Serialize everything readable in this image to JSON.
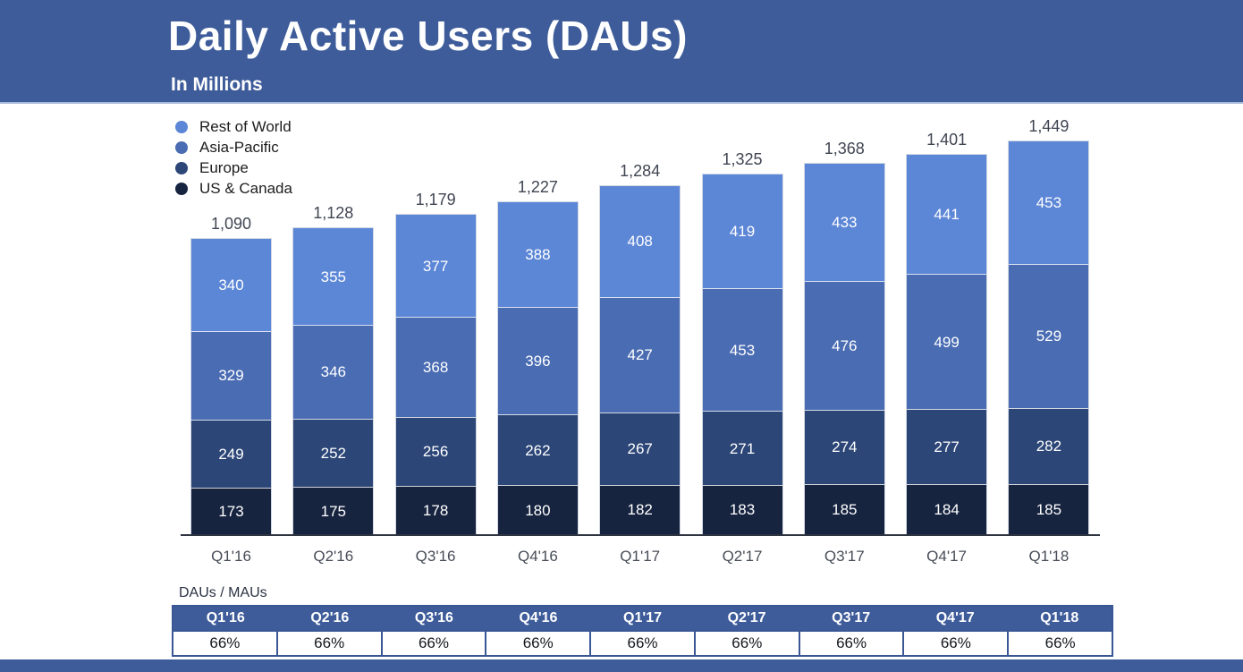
{
  "header": {
    "title": "Daily Active Users (DAUs)",
    "subtitle": "In Millions"
  },
  "colors": {
    "banner": "#3e5c9a",
    "banner_edge": "#a9bad9",
    "axis": "#2e3440",
    "table_border": "#3a5795",
    "footer_strip": "#3e5c9a",
    "rest_of_world": "#5c86d6",
    "asia_pacific": "#4a6cb3",
    "europe": "#2c4677",
    "us_canada": "#172440"
  },
  "legend": [
    {
      "label": "Rest of World",
      "color": "#5c86d6"
    },
    {
      "label": "Asia-Pacific",
      "color": "#4a6cb3"
    },
    {
      "label": "Europe",
      "color": "#2c4677"
    },
    {
      "label": "US & Canada",
      "color": "#172440"
    }
  ],
  "chart_data": {
    "type": "bar",
    "stacked": true,
    "title": "Daily Active Users (DAUs)",
    "subtitle": "In Millions",
    "unit": "millions",
    "grid": false,
    "y_axis_hidden": true,
    "legend_position": "top-left",
    "categories": [
      "Q1'16",
      "Q2'16",
      "Q3'16",
      "Q4'16",
      "Q1'17",
      "Q2'17",
      "Q3'17",
      "Q4'17",
      "Q1'18"
    ],
    "series": [
      {
        "name": "US & Canada",
        "color": "#172440",
        "values": [
          173,
          175,
          178,
          180,
          182,
          183,
          185,
          184,
          185
        ]
      },
      {
        "name": "Europe",
        "color": "#2c4677",
        "values": [
          249,
          252,
          256,
          262,
          267,
          271,
          274,
          277,
          282
        ]
      },
      {
        "name": "Asia-Pacific",
        "color": "#4a6cb3",
        "values": [
          329,
          346,
          368,
          396,
          427,
          453,
          476,
          499,
          529
        ]
      },
      {
        "name": "Rest of World",
        "color": "#5c86d6",
        "values": [
          340,
          355,
          377,
          388,
          408,
          419,
          433,
          441,
          453
        ]
      }
    ],
    "totals_display": [
      "1,090",
      "1,128",
      "1,179",
      "1,227",
      "1,284",
      "1,325",
      "1,368",
      "1,401",
      "1,449"
    ]
  },
  "table": {
    "label": "DAUs / MAUs",
    "columns": [
      "Q1'16",
      "Q2'16",
      "Q3'16",
      "Q4'16",
      "Q1'17",
      "Q2'17",
      "Q3'17",
      "Q4'17",
      "Q1'18"
    ],
    "values": [
      "66%",
      "66%",
      "66%",
      "66%",
      "66%",
      "66%",
      "66%",
      "66%",
      "66%"
    ]
  }
}
